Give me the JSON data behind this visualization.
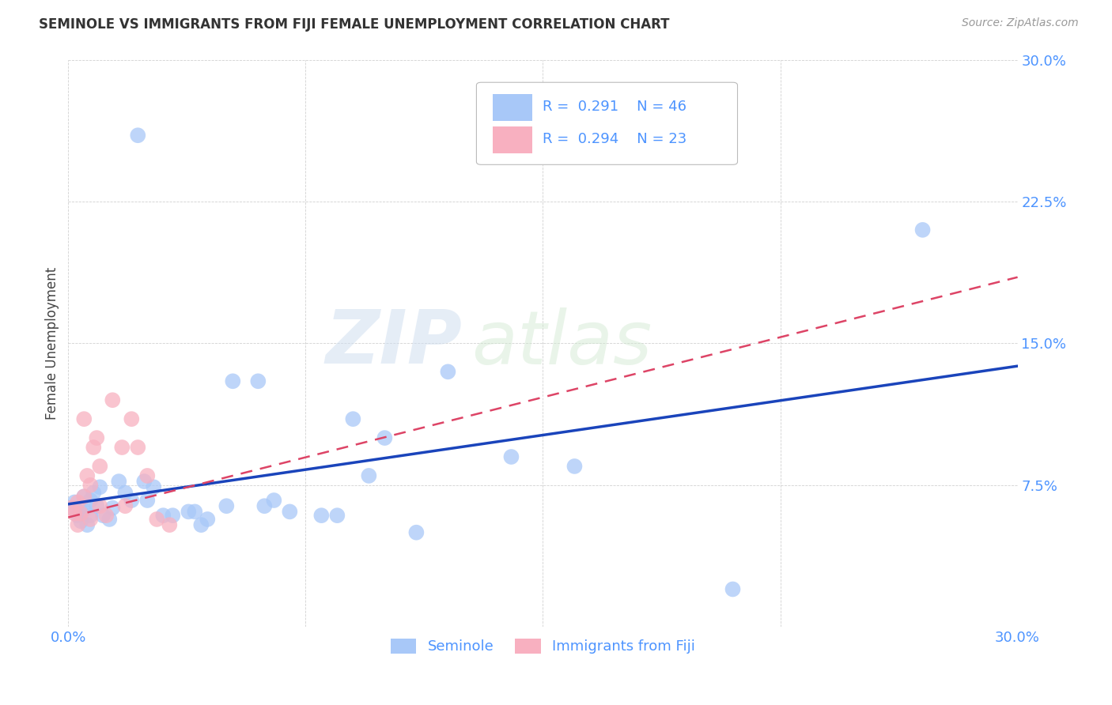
{
  "title": "SEMINOLE VS IMMIGRANTS FROM FIJI FEMALE UNEMPLOYMENT CORRELATION CHART",
  "source": "Source: ZipAtlas.com",
  "label_color": "#4d94ff",
  "ylabel": "Female Unemployment",
  "xlim": [
    0.0,
    0.3
  ],
  "ylim": [
    0.0,
    0.3
  ],
  "seminole_color": "#a8c8f8",
  "fiji_color": "#f8b0c0",
  "seminole_line_color": "#1a44bb",
  "fiji_line_color": "#dd4466",
  "legend_R1": "0.291",
  "legend_N1": "46",
  "legend_R2": "0.294",
  "legend_N2": "23",
  "background_color": "#ffffff",
  "seminole_points": [
    [
      0.001,
      0.063
    ],
    [
      0.002,
      0.066
    ],
    [
      0.003,
      0.059
    ],
    [
      0.004,
      0.061
    ],
    [
      0.004,
      0.056
    ],
    [
      0.005,
      0.069
    ],
    [
      0.005,
      0.062
    ],
    [
      0.006,
      0.054
    ],
    [
      0.007,
      0.059
    ],
    [
      0.007,
      0.067
    ],
    [
      0.008,
      0.071
    ],
    [
      0.009,
      0.064
    ],
    [
      0.01,
      0.074
    ],
    [
      0.011,
      0.059
    ],
    [
      0.013,
      0.057
    ],
    [
      0.014,
      0.063
    ],
    [
      0.016,
      0.077
    ],
    [
      0.018,
      0.071
    ],
    [
      0.02,
      0.067
    ],
    [
      0.022,
      0.26
    ],
    [
      0.024,
      0.077
    ],
    [
      0.025,
      0.067
    ],
    [
      0.027,
      0.074
    ],
    [
      0.03,
      0.059
    ],
    [
      0.033,
      0.059
    ],
    [
      0.038,
      0.061
    ],
    [
      0.04,
      0.061
    ],
    [
      0.042,
      0.054
    ],
    [
      0.044,
      0.057
    ],
    [
      0.05,
      0.064
    ],
    [
      0.052,
      0.13
    ],
    [
      0.06,
      0.13
    ],
    [
      0.062,
      0.064
    ],
    [
      0.065,
      0.067
    ],
    [
      0.07,
      0.061
    ],
    [
      0.08,
      0.059
    ],
    [
      0.085,
      0.059
    ],
    [
      0.09,
      0.11
    ],
    [
      0.095,
      0.08
    ],
    [
      0.1,
      0.1
    ],
    [
      0.11,
      0.05
    ],
    [
      0.12,
      0.135
    ],
    [
      0.14,
      0.09
    ],
    [
      0.16,
      0.085
    ],
    [
      0.21,
      0.02
    ],
    [
      0.27,
      0.21
    ]
  ],
  "fiji_points": [
    [
      0.001,
      0.063
    ],
    [
      0.002,
      0.06
    ],
    [
      0.003,
      0.066
    ],
    [
      0.003,
      0.054
    ],
    [
      0.004,
      0.06
    ],
    [
      0.005,
      0.069
    ],
    [
      0.005,
      0.11
    ],
    [
      0.006,
      0.08
    ],
    [
      0.007,
      0.075
    ],
    [
      0.007,
      0.057
    ],
    [
      0.008,
      0.095
    ],
    [
      0.009,
      0.1
    ],
    [
      0.01,
      0.085
    ],
    [
      0.01,
      0.064
    ],
    [
      0.012,
      0.059
    ],
    [
      0.014,
      0.12
    ],
    [
      0.017,
      0.095
    ],
    [
      0.018,
      0.064
    ],
    [
      0.02,
      0.11
    ],
    [
      0.022,
      0.095
    ],
    [
      0.025,
      0.08
    ],
    [
      0.028,
      0.057
    ],
    [
      0.032,
      0.054
    ]
  ],
  "seminole_trendline": [
    [
      0.0,
      0.065
    ],
    [
      0.3,
      0.138
    ]
  ],
  "fiji_trendline": [
    [
      0.0,
      0.058
    ],
    [
      0.3,
      0.185
    ]
  ]
}
